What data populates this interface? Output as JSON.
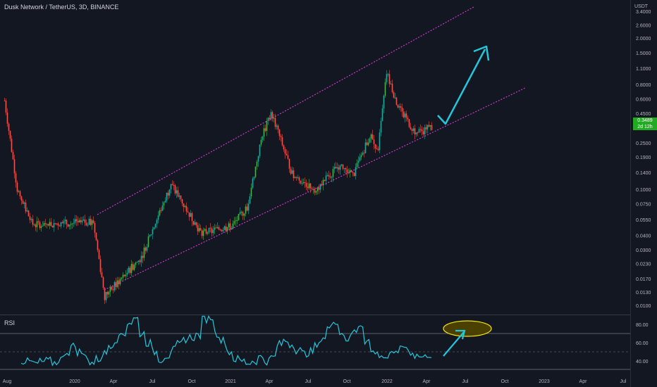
{
  "header": {
    "title": "Dusk Network / TetherUS, 3D, BINANCE"
  },
  "colors": {
    "background": "#131722",
    "up_candle": "#26a69a",
    "up_candle_bright": "#4caf50",
    "down_candle": "#ef5350",
    "channel_line": "#d63cd6",
    "arrow": "#26c6da",
    "rsi_line": "#26c6da",
    "highlight_ellipse_fill": "#4a4000",
    "highlight_ellipse_stroke": "#f5e400",
    "price_badge": "#22ab22"
  },
  "price_axis": {
    "unit": "USDT",
    "ticks": [
      "3.4000",
      "2.6000",
      "2.0000",
      "1.5000",
      "1.1000",
      "0.8000",
      "0.6000",
      "0.4500",
      "0.2500",
      "0.1900",
      "0.1400",
      "0.1000",
      "0.0750",
      "0.0550",
      "0.0400",
      "0.0300",
      "0.0230",
      "0.0170",
      "0.0130",
      "0.0100"
    ],
    "last_price": "0.3489",
    "countdown": "2d 12h"
  },
  "rsi_panel": {
    "label": "RSI",
    "ticks": [
      "80.00",
      "60.00",
      "40.00"
    ],
    "overbought": 70,
    "oversold": 30,
    "middle": 50
  },
  "time_axis": {
    "ticks": [
      "Aug",
      "2020",
      "Apr",
      "Jul",
      "Oct",
      "2021",
      "Apr",
      "Jul",
      "Oct",
      "2022",
      "Apr",
      "Jul",
      "Oct",
      "2023",
      "Apr",
      "Jul"
    ]
  },
  "chart_data": {
    "type": "candlestick",
    "title": "Dusk Network / TetherUS, 3D, BINANCE",
    "y_scale": "log",
    "ylim": [
      0.0092,
      3.5
    ],
    "x": [
      "2019-08",
      "2019-10",
      "2019-12",
      "2020-03",
      "2020-04",
      "2020-06",
      "2020-08",
      "2020-10",
      "2020-12",
      "2021-01",
      "2021-03",
      "2021-04",
      "2021-05",
      "2021-06",
      "2021-08",
      "2021-09",
      "2021-11",
      "2021-12",
      "2022-01",
      "2022-02",
      "2022-03",
      "2022-04"
    ],
    "close_path": [
      0.58,
      0.1,
      0.05,
      0.052,
      0.012,
      0.026,
      0.11,
      0.042,
      0.048,
      0.07,
      0.3,
      0.45,
      0.13,
      0.1,
      0.16,
      0.13,
      0.3,
      0.2,
      1.0,
      0.5,
      0.3,
      0.3489
    ],
    "last_price": 0.3489,
    "annotations": [
      {
        "kind": "ascending channel upper line"
      },
      {
        "kind": "ascending channel lower line"
      },
      {
        "kind": "projected breakout arrow",
        "target_approx": 1.45
      }
    ],
    "rsi": {
      "ylim": [
        30,
        90
      ],
      "values": [
        40,
        39,
        37,
        39,
        40,
        38,
        42,
        50,
        56,
        50,
        45,
        38,
        42,
        48,
        58,
        64,
        70,
        82,
        86,
        70,
        60,
        50,
        42,
        46,
        52,
        58,
        64,
        66,
        68,
        86,
        88,
        70,
        62,
        50,
        42,
        40,
        38,
        40,
        44,
        40,
        44,
        58,
        62,
        58,
        52,
        48,
        50,
        56,
        66,
        76,
        84,
        70,
        64,
        72,
        80,
        62,
        50,
        47,
        44,
        46,
        52,
        56,
        50,
        46,
        44,
        47
      ]
    }
  }
}
